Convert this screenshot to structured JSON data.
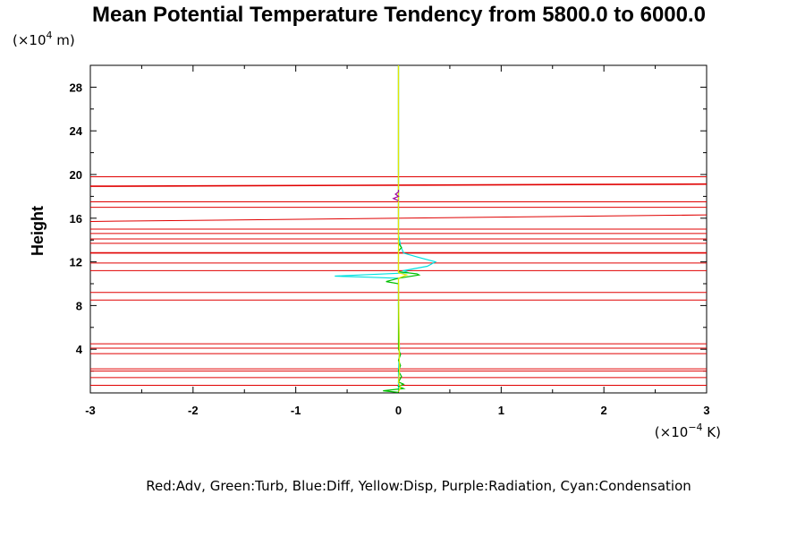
{
  "chart_data": {
    "type": "line",
    "title": "Mean Potential Temperature Tendency from 5800.0 to 6000.0",
    "ylabel": "Height",
    "y_unit_prefix": "(×10",
    "y_unit_exp": "4",
    "y_unit_suffix": " m)",
    "x_unit_prefix": "(×10",
    "x_unit_exp": "−4",
    "x_unit_suffix": " K)",
    "xlim": [
      -3,
      3
    ],
    "ylim": [
      0,
      30
    ],
    "x_ticks": [
      -3,
      -2,
      -1,
      0,
      1,
      2,
      3
    ],
    "y_ticks": [
      4,
      8,
      12,
      16,
      20,
      24,
      28
    ],
    "legend_text": "Red:Adv, Green:Turb, Blue:Diff, Yellow:Disp, Purple:Radiation, Cyan:Condensation",
    "colors": {
      "Adv": "#e00000",
      "Turb": "#00c000",
      "Diff": "#0000ff",
      "Disp": "#e6e600",
      "Radiation": "#a000a0",
      "Condensation": "#00e0e0"
    },
    "adv_lines": [
      {
        "y_left": 0.7,
        "y_right": 0.7
      },
      {
        "y_left": 1.4,
        "y_right": 1.4
      },
      {
        "y_left": 2.0,
        "y_right": 2.0
      },
      {
        "y_left": 2.2,
        "y_right": 2.2
      },
      {
        "y_left": 3.6,
        "y_right": 3.6
      },
      {
        "y_left": 4.1,
        "y_right": 4.1
      },
      {
        "y_left": 4.5,
        "y_right": 4.5
      },
      {
        "y_left": 8.5,
        "y_right": 8.5
      },
      {
        "y_left": 9.2,
        "y_right": 9.2
      },
      {
        "y_left": 11.2,
        "y_right": 11.2
      },
      {
        "y_left": 11.9,
        "y_right": 11.9
      },
      {
        "y_left": 12.8,
        "y_right": 12.8
      },
      {
        "y_left": 12.85,
        "y_right": 12.85
      },
      {
        "y_left": 13.7,
        "y_right": 13.7
      },
      {
        "y_left": 14.1,
        "y_right": 14.1
      },
      {
        "y_left": 14.6,
        "y_right": 14.6
      },
      {
        "y_left": 15.0,
        "y_right": 15.0
      },
      {
        "y_left": 15.7,
        "y_right": 16.3
      },
      {
        "y_left": 17.0,
        "y_right": 17.0
      },
      {
        "y_left": 17.5,
        "y_right": 17.5
      },
      {
        "y_left": 18.9,
        "y_right": 19.1
      },
      {
        "y_left": 18.95,
        "y_right": 19.15
      },
      {
        "y_left": 19.8,
        "y_right": 19.8
      }
    ],
    "series": [
      {
        "name": "Condensation",
        "points": [
          [
            0.0,
            0.2
          ],
          [
            0.0,
            2.0
          ],
          [
            0.01,
            4.0
          ],
          [
            0.0,
            8.0
          ],
          [
            0.0,
            10.0
          ],
          [
            0.0,
            10.5
          ],
          [
            -0.3,
            10.6
          ],
          [
            -0.62,
            10.7
          ],
          [
            0.1,
            11.0
          ],
          [
            0.05,
            11.2
          ],
          [
            0.28,
            11.6
          ],
          [
            0.36,
            12.0
          ],
          [
            0.2,
            12.4
          ],
          [
            0.05,
            12.8
          ],
          [
            0.02,
            13.5
          ],
          [
            0.0,
            14.5
          ],
          [
            0.0,
            16.0
          ],
          [
            0.0,
            18.0
          ],
          [
            0.0,
            30.0
          ]
        ]
      },
      {
        "name": "Turb",
        "points": [
          [
            0.0,
            0.05
          ],
          [
            -0.15,
            0.2
          ],
          [
            0.05,
            0.4
          ],
          [
            0.0,
            0.6
          ],
          [
            0.05,
            0.8
          ],
          [
            0.0,
            1.0
          ],
          [
            0.03,
            1.5
          ],
          [
            0.0,
            2.0
          ],
          [
            0.02,
            2.5
          ],
          [
            0.0,
            3.0
          ],
          [
            0.02,
            3.5
          ],
          [
            0.0,
            4.0
          ],
          [
            0.0,
            9.5
          ],
          [
            0.0,
            10.0
          ],
          [
            -0.12,
            10.2
          ],
          [
            0.0,
            10.5
          ],
          [
            0.2,
            10.8
          ],
          [
            0.18,
            10.9
          ],
          [
            0.0,
            11.1
          ],
          [
            0.0,
            13.0
          ],
          [
            0.03,
            13.3
          ],
          [
            0.0,
            13.7
          ],
          [
            0.0,
            30.0
          ]
        ]
      },
      {
        "name": "Disp",
        "points": [
          [
            0.0,
            0.1
          ],
          [
            0.02,
            0.5
          ],
          [
            0.0,
            1.0
          ],
          [
            0.01,
            2.0
          ],
          [
            0.0,
            10.5
          ],
          [
            0.08,
            10.8
          ],
          [
            0.0,
            11.0
          ],
          [
            0.0,
            30.0
          ]
        ]
      },
      {
        "name": "Radiation",
        "points": [
          [
            0.0,
            17.6
          ],
          [
            -0.05,
            17.8
          ],
          [
            0.0,
            18.0
          ],
          [
            -0.03,
            18.2
          ],
          [
            0.0,
            18.4
          ],
          [
            0.0,
            18.6
          ]
        ]
      }
    ]
  }
}
